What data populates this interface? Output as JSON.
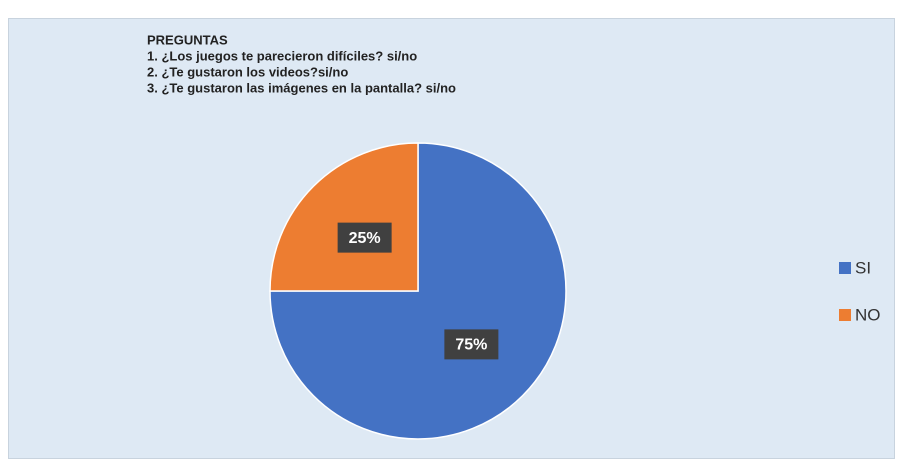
{
  "chart_data": {
    "type": "pie",
    "title": "PREGUNTAS",
    "subtitle": [
      "1. ¿Los juegos te parecieron difíciles? si/no",
      "2. ¿Te gustaron los videos?si/no",
      "3. ¿Te gustaron las imágenes en la pantalla? si/no"
    ],
    "categories": [
      "SI",
      "NO"
    ],
    "values": [
      75,
      25
    ],
    "value_labels": [
      "75%",
      "25%"
    ],
    "colors": [
      "#4472c4",
      "#ed7d31"
    ],
    "legend": "right"
  }
}
